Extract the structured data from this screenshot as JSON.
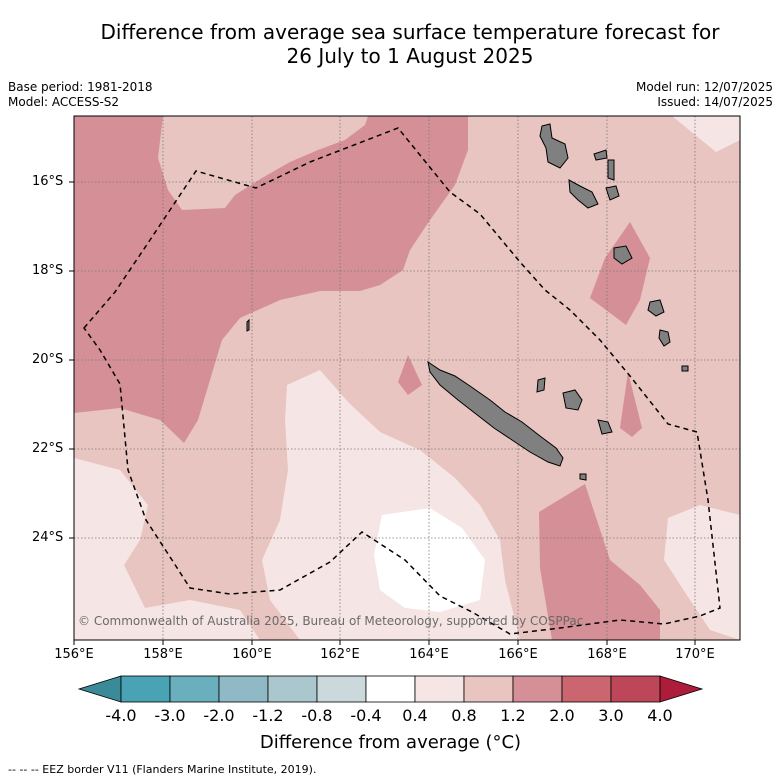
{
  "title_line1": "Difference from average sea surface temperature forecast for",
  "title_line2": "26 July to 1 August 2025",
  "base_period": "Base period: 1981-2018",
  "model": "Model: ACCESS-S2",
  "model_run": "Model run: 12/07/2025",
  "issued": "Issued: 14/07/2025",
  "copyright": "© Commonwealth of Australia 2025, Bureau of Meteorology, supported by COSPPac",
  "x_ticks": [
    "156°E",
    "158°E",
    "160°E",
    "162°E",
    "164°E",
    "166°E",
    "168°E",
    "170°E"
  ],
  "y_ticks": [
    "16°S",
    "18°S",
    "20°S",
    "22°S",
    "24°S"
  ],
  "colorbar": {
    "title": "Difference from average (°C)",
    "labels": [
      "-4.0",
      "-3.0",
      "-2.0",
      "-1.2",
      "-0.8",
      "-0.4",
      "0.4",
      "0.8",
      "1.2",
      "2.0",
      "3.0",
      "4.0"
    ],
    "colors": [
      "#4aa3b4",
      "#6aafbd",
      "#8eb9c5",
      "#a9c7cc",
      "#cbd8dc",
      "#ffffff",
      "#f5e6e5",
      "#e8c5c0",
      "#d58f96",
      "#cb6570",
      "#bd4658"
    ],
    "under_color": "#3b8a98",
    "over_color": "#ad1c3a"
  },
  "footer": "--  --  -- EEZ border V11 (Flanders Marine Institute, 2019)."
}
